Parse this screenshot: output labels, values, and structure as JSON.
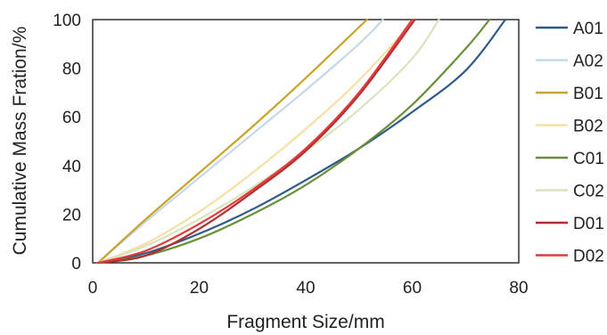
{
  "chart_data": {
    "type": "line",
    "title": "",
    "xlabel": "Fragment Size/mm",
    "ylabel": "Cumulative Mass Fration/%",
    "xlim": [
      0,
      80
    ],
    "ylim": [
      0,
      100
    ],
    "xticks": [
      "0",
      "20",
      "40",
      "60",
      "80"
    ],
    "yticks": [
      "0",
      "20",
      "40",
      "60",
      "80",
      "100"
    ],
    "grid": false,
    "legend_position": "right",
    "series": [
      {
        "name": "A01",
        "color": "#2e5a87",
        "x": [
          1,
          10,
          20,
          30,
          40,
          50,
          60,
          70,
          77.5
        ],
        "y": [
          0,
          4,
          12,
          22,
          34,
          47,
          62,
          79,
          100
        ]
      },
      {
        "name": "A02",
        "color": "#c5d8ea",
        "x": [
          1,
          10,
          20,
          30,
          40,
          50,
          54.5
        ],
        "y": [
          0,
          17,
          35,
          53,
          71,
          90,
          100
        ]
      },
      {
        "name": "B01",
        "color": "#c8a42a",
        "x": [
          1,
          10,
          20,
          30,
          40,
          51.5
        ],
        "y": [
          0,
          18,
          37,
          56,
          76,
          100
        ]
      },
      {
        "name": "B02",
        "color": "#f6dfa4",
        "x": [
          1,
          10,
          20,
          30,
          40,
          50,
          60.5
        ],
        "y": [
          0,
          8,
          21,
          37,
          55,
          75,
          100
        ]
      },
      {
        "name": "C01",
        "color": "#6b8e3a",
        "x": [
          1,
          10,
          20,
          30,
          40,
          50,
          60,
          70,
          74.5
        ],
        "y": [
          0,
          3,
          10,
          20,
          32,
          47,
          65,
          88,
          100
        ]
      },
      {
        "name": "C02",
        "color": "#d7e4bd",
        "x": [
          1,
          10,
          20,
          30,
          40,
          50,
          60,
          65
        ],
        "y": [
          0,
          7,
          18,
          31,
          46,
          63,
          84,
          100
        ]
      },
      {
        "name": "D01",
        "color": "#b22e2e",
        "x": [
          1,
          10,
          20,
          30,
          40,
          50,
          60.5
        ],
        "y": [
          0,
          3,
          14,
          29,
          46,
          69,
          100
        ]
      },
      {
        "name": "D02",
        "color": "#e33b3b",
        "x": [
          1,
          10,
          20,
          30,
          40,
          50,
          60
        ],
        "y": [
          0,
          5,
          16,
          30,
          47,
          70,
          100
        ]
      }
    ]
  }
}
